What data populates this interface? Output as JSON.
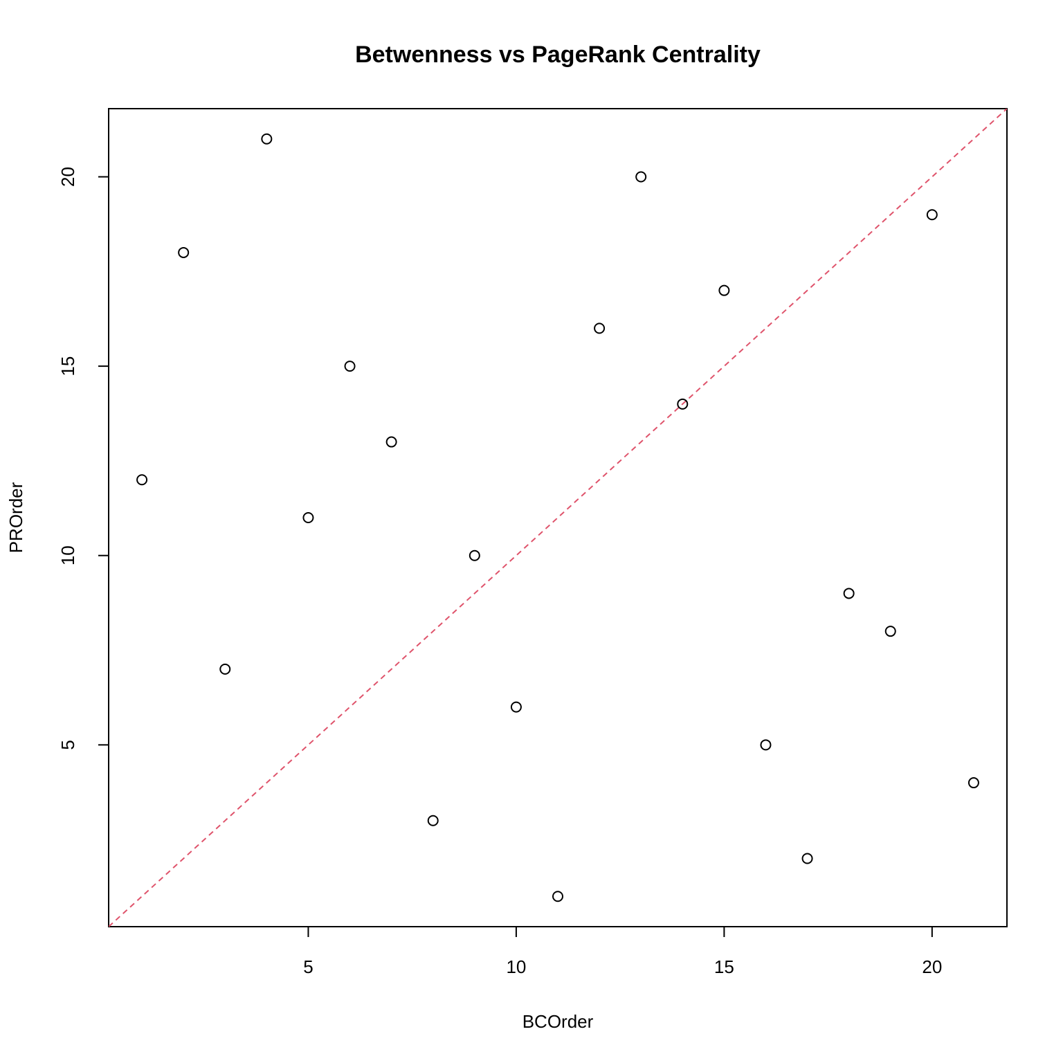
{
  "chart_data": {
    "type": "scatter",
    "title": "Betwenness vs PageRank Centrality",
    "x_label": "BCOrder",
    "y_label": "PROrder",
    "x": [
      1,
      2,
      3,
      4,
      5,
      6,
      7,
      8,
      9,
      10,
      11,
      12,
      13,
      14,
      15,
      16,
      17,
      18,
      19,
      20,
      21
    ],
    "series": [
      {
        "color": "#000000",
        "values": [
          12,
          18,
          7,
          21,
          11,
          15,
          13,
          3,
          10,
          6,
          1,
          16,
          20,
          14,
          17,
          5,
          2,
          9,
          8,
          19,
          4
        ]
      }
    ],
    "xlim": [
      0.2,
      21.8
    ],
    "ylim": [
      0.2,
      21.8
    ],
    "xticks": [
      5,
      10,
      15,
      20
    ],
    "yticks": [
      5,
      10,
      15,
      20
    ],
    "reference_line": {
      "intercept": 0,
      "slope": 1,
      "color": "#DF536B"
    }
  }
}
